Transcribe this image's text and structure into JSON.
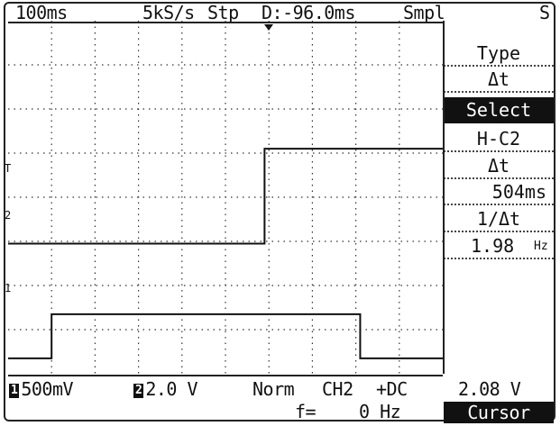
{
  "status_bar": {
    "timebase": "100ms",
    "sample_rate": "5kS/s",
    "run_state": "Stp",
    "delay": "D:-96.0ms",
    "acq_mode": "Smpl",
    "right_glyph": "S"
  },
  "menu": {
    "type_label": "Type",
    "type_value": "Δt",
    "select_label": "Select",
    "select_value": "H-C2",
    "delta_t_label": "Δt",
    "delta_t_value": "504ms",
    "inv_delta_t_label": "1/Δt",
    "inv_delta_t_value": "1.98",
    "inv_delta_t_unit": "Hz"
  },
  "markers": {
    "trigger_level": "T",
    "ch2_marker": "2",
    "ch1_marker": "1"
  },
  "bottom_bar": {
    "ch1_badge": "1",
    "ch1_scale": "500mV",
    "ch2_badge": "2",
    "ch2_scale": "2.0 V",
    "trigger_mode": "Norm",
    "trigger_source": "CH2",
    "trigger_coupling": "+DC",
    "freq_label": "f=",
    "freq_value": "0 Hz",
    "cursor_readout": "2.08 V",
    "cursor_softkey": "Cursor"
  },
  "waveforms": {
    "ch2": {
      "low_level_div": 2.95,
      "high_level_div": 5.1,
      "transition_time_div": 5.9
    },
    "ch1": {
      "low_level_div": 0.35,
      "high_level_div": 1.35,
      "rise_time_div": 1.0,
      "fall_time_div": 8.1
    }
  }
}
